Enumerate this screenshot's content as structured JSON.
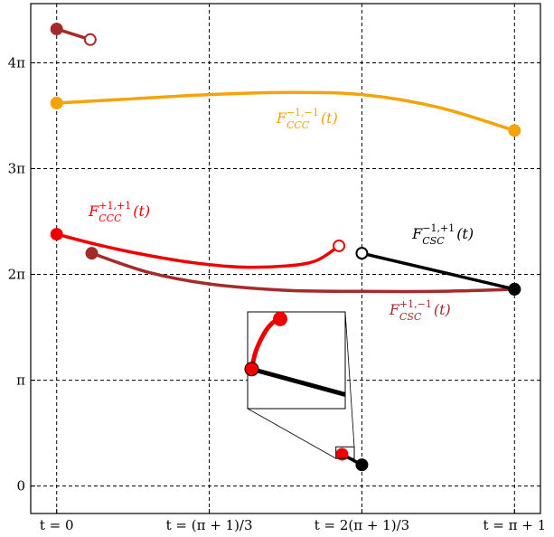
{
  "chart_data": {
    "type": "line",
    "x_ticks": [
      {
        "value": 0,
        "label": "t = 0"
      },
      {
        "value": 1,
        "label": "t = (π + 1)/3"
      },
      {
        "value": 2,
        "label": "t = 2(π + 1)/3"
      },
      {
        "value": 3,
        "label": "t = π + 1"
      }
    ],
    "y_ticks": [
      {
        "value": 0,
        "label": "0"
      },
      {
        "value": 1,
        "label": "π"
      },
      {
        "value": 2,
        "label": "2π"
      },
      {
        "value": 3,
        "label": "3π"
      },
      {
        "value": 4,
        "label": "4π"
      }
    ],
    "xlim": [
      -0.17,
      3.17
    ],
    "ylim": [
      -0.26,
      4.56
    ],
    "grid": true,
    "series": [
      {
        "name": "F_CCC^{-1,-1}(t)",
        "label_main": "F",
        "label_sub": "CCC",
        "label_sup": "−1,−1",
        "label_arg": "(t)",
        "color": "#f5a30b",
        "x": [
          0,
          0.5,
          1.0,
          1.5,
          2.0,
          2.5,
          3.0
        ],
        "y": [
          3.62,
          3.66,
          3.7,
          3.72,
          3.7,
          3.58,
          3.36
        ],
        "start_filled": true,
        "end_filled": true
      },
      {
        "name": "F_CCC^{+1,+1}(t)",
        "label_main": "F",
        "label_sub": "CCC",
        "label_sup": "+1,+1",
        "label_arg": "(t)",
        "color": "#ee0000",
        "x": [
          0,
          0.3,
          0.6,
          0.9,
          1.2,
          1.5,
          1.7,
          1.85
        ],
        "y": [
          2.38,
          2.27,
          2.18,
          2.11,
          2.07,
          2.08,
          2.13,
          2.27
        ],
        "start_filled": true,
        "end_filled": false
      },
      {
        "name": "F_CSC^{+1,-1}(t)",
        "label_main": "F",
        "label_sub": "CSC",
        "label_sup": "+1,−1",
        "label_arg": "(t)",
        "color": "#a52a2a",
        "x": [
          0.23,
          0.6,
          1.0,
          1.5,
          2.0,
          2.5,
          3.0
        ],
        "y": [
          2.2,
          2.02,
          1.91,
          1.85,
          1.84,
          1.84,
          1.86
        ],
        "start_filled": true,
        "end_filled": true
      },
      {
        "name": "F_CSC^{-1,+1}(t)",
        "label_main": "F",
        "label_sub": "CSC",
        "label_sup": "−1,+1",
        "label_arg": "(t)",
        "color": "#000000",
        "x": [
          2.0,
          3.0
        ],
        "y": [
          2.2,
          1.86
        ],
        "start_filled": false,
        "end_filled": true
      },
      {
        "name": "",
        "color": "#a52a2a",
        "x": [
          0,
          0.22
        ],
        "y": [
          4.32,
          4.22
        ],
        "start_filled": true,
        "end_filled": false
      },
      {
        "name": "",
        "color": "#000000",
        "x": [
          1.87,
          2.0
        ],
        "y": [
          0.3,
          0.2
        ],
        "start_filled": true,
        "end_filled": true,
        "start_color": "#ee0000"
      }
    ],
    "inset": {
      "xlim": [
        1.83,
        1.95
      ],
      "ylim": [
        0.26,
        0.37
      ],
      "red_curve": {
        "x": [
          1.835,
          1.84,
          1.85,
          1.86,
          1.87
        ],
        "y": [
          0.305,
          0.325,
          0.345,
          0.357,
          0.362
        ]
      },
      "black_curve": {
        "x": [
          1.835,
          1.95
        ],
        "y": [
          0.305,
          0.276
        ]
      }
    }
  }
}
